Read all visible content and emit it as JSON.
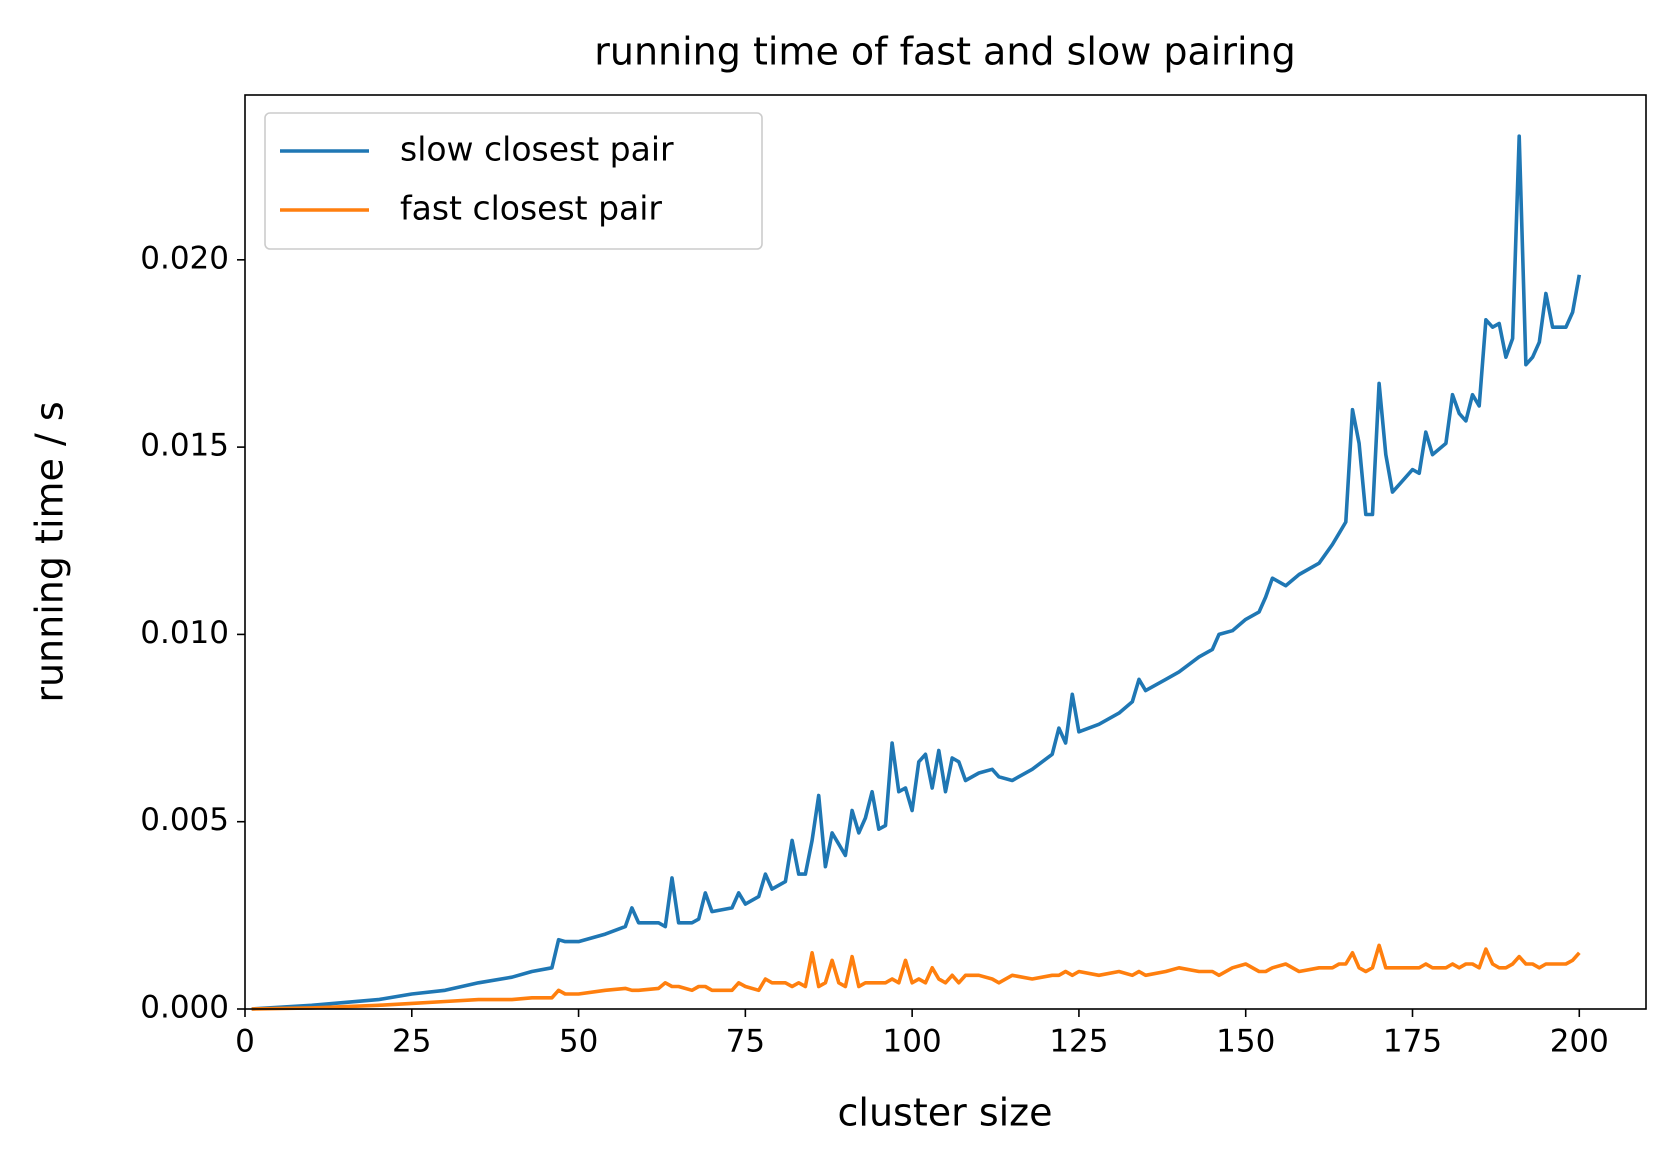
{
  "chart_data": {
    "type": "line",
    "title": "running time of fast and slow pairing",
    "x_label": "cluster size",
    "y_label": "running time / s",
    "x": [
      1,
      10,
      20,
      25,
      30,
      35,
      40,
      43,
      46,
      47,
      48,
      50,
      54,
      57,
      58,
      59,
      62,
      63,
      64,
      65,
      67,
      68,
      69,
      70,
      73,
      74,
      75,
      77,
      78,
      79,
      81,
      82,
      83,
      84,
      85,
      86,
      87,
      88,
      89,
      90,
      91,
      92,
      93,
      94,
      95,
      96,
      97,
      98,
      99,
      100,
      101,
      102,
      103,
      104,
      105,
      106,
      107,
      108,
      110,
      112,
      113,
      115,
      118,
      121,
      122,
      123,
      124,
      125,
      128,
      131,
      133,
      134,
      135,
      138,
      140,
      143,
      145,
      146,
      148,
      150,
      152,
      153,
      154,
      156,
      158,
      161,
      163,
      164,
      165,
      166,
      167,
      168,
      169,
      170,
      171,
      172,
      175,
      176,
      177,
      178,
      180,
      181,
      182,
      183,
      184,
      185,
      186,
      187,
      188,
      189,
      190,
      191,
      192,
      193,
      194,
      195,
      196,
      198,
      199,
      200
    ],
    "series": [
      {
        "name": "slow closest pair",
        "color": "#1f77b4",
        "values": [
          0,
          0.0001,
          0.00025,
          0.0004,
          0.0005,
          0.0007,
          0.00085,
          0.001,
          0.0011,
          0.00185,
          0.0018,
          0.0018,
          0.002,
          0.0022,
          0.0027,
          0.0023,
          0.0023,
          0.0022,
          0.0035,
          0.0023,
          0.0023,
          0.0024,
          0.0031,
          0.0026,
          0.0027,
          0.0031,
          0.0028,
          0.003,
          0.0036,
          0.0032,
          0.0034,
          0.0045,
          0.0036,
          0.0036,
          0.0045,
          0.0057,
          0.0038,
          0.0047,
          0.0044,
          0.0041,
          0.0053,
          0.0047,
          0.0051,
          0.0058,
          0.0048,
          0.0049,
          0.0071,
          0.0058,
          0.0059,
          0.0053,
          0.0066,
          0.0068,
          0.0059,
          0.0069,
          0.0058,
          0.0067,
          0.0066,
          0.0061,
          0.0063,
          0.0064,
          0.0062,
          0.0061,
          0.0064,
          0.0068,
          0.0075,
          0.0071,
          0.0084,
          0.0074,
          0.0076,
          0.0079,
          0.0082,
          0.0088,
          0.0085,
          0.0088,
          0.009,
          0.0094,
          0.0096,
          0.01,
          0.0101,
          0.0104,
          0.0106,
          0.011,
          0.0115,
          0.0113,
          0.0116,
          0.0119,
          0.0124,
          0.0127,
          0.013,
          0.016,
          0.0151,
          0.0132,
          0.0132,
          0.0167,
          0.0148,
          0.0138,
          0.0144,
          0.0143,
          0.0154,
          0.0148,
          0.0151,
          0.0164,
          0.0159,
          0.0157,
          0.0164,
          0.0161,
          0.0184,
          0.0182,
          0.0183,
          0.0174,
          0.0179,
          0.0233,
          0.0172,
          0.0174,
          0.0178,
          0.0191,
          0.0182,
          0.0182,
          0.0186,
          0.0196
        ]
      },
      {
        "name": "fast closest pair",
        "color": "#ff7f0e",
        "values": [
          0,
          3e-05,
          0.0001,
          0.00015,
          0.0002,
          0.00025,
          0.00025,
          0.0003,
          0.0003,
          0.0005,
          0.0004,
          0.0004,
          0.0005,
          0.00055,
          0.0005,
          0.0005,
          0.00055,
          0.0007,
          0.0006,
          0.0006,
          0.0005,
          0.0006,
          0.0006,
          0.0005,
          0.0005,
          0.0007,
          0.0006,
          0.0005,
          0.0008,
          0.0007,
          0.0007,
          0.0006,
          0.0007,
          0.0006,
          0.0015,
          0.0006,
          0.0007,
          0.0013,
          0.0007,
          0.0006,
          0.0014,
          0.0006,
          0.0007,
          0.0007,
          0.0007,
          0.0007,
          0.0008,
          0.0007,
          0.0013,
          0.0007,
          0.0008,
          0.0007,
          0.0011,
          0.0008,
          0.0007,
          0.0009,
          0.0007,
          0.0009,
          0.0009,
          0.0008,
          0.0007,
          0.0009,
          0.0008,
          0.0009,
          0.0009,
          0.001,
          0.0009,
          0.001,
          0.0009,
          0.001,
          0.0009,
          0.001,
          0.0009,
          0.001,
          0.0011,
          0.001,
          0.001,
          0.0009,
          0.0011,
          0.0012,
          0.001,
          0.001,
          0.0011,
          0.0012,
          0.001,
          0.0011,
          0.0011,
          0.0012,
          0.0012,
          0.0015,
          0.0011,
          0.001,
          0.0011,
          0.0017,
          0.0011,
          0.0011,
          0.0011,
          0.0011,
          0.0012,
          0.0011,
          0.0011,
          0.0012,
          0.0011,
          0.0012,
          0.0012,
          0.0011,
          0.0016,
          0.0012,
          0.0011,
          0.0011,
          0.0012,
          0.0014,
          0.0012,
          0.0012,
          0.0011,
          0.0012,
          0.0012,
          0.0012,
          0.0013,
          0.0015
        ]
      }
    ],
    "xlim": [
      0,
      210
    ],
    "xticks": [
      0,
      25,
      50,
      75,
      100,
      125,
      150,
      175,
      200
    ],
    "ylim": [
      0,
      0.0244
    ],
    "yticks": [
      {
        "value": 0,
        "label": "0.000"
      },
      {
        "value": 0.005,
        "label": "0.005"
      },
      {
        "value": 0.01,
        "label": "0.010"
      },
      {
        "value": 0.015,
        "label": "0.015"
      },
      {
        "value": 0.02,
        "label": "0.020"
      }
    ],
    "grid": false,
    "legend": "upper left"
  }
}
